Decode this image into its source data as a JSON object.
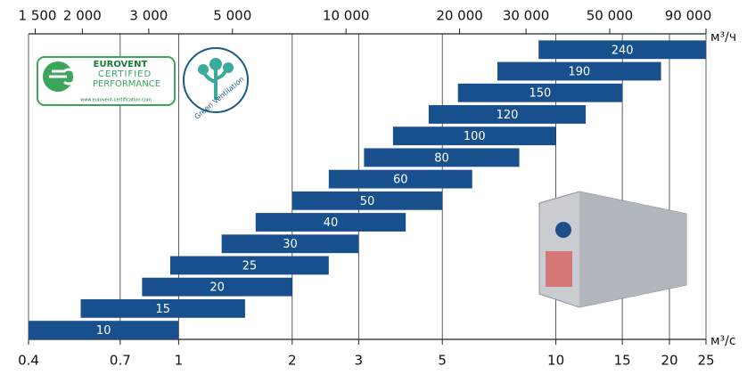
{
  "chart_data": {
    "type": "range-bar",
    "xscale": "log",
    "color": "#17508c",
    "categories": [
      "240",
      "190",
      "150",
      "120",
      "100",
      "80",
      "60",
      "50",
      "40",
      "30",
      "25",
      "20",
      "15",
      "10"
    ],
    "low": [
      9,
      7,
      5.5,
      4.6,
      3.7,
      3.1,
      2.5,
      2,
      1.6,
      1.3,
      0.95,
      0.8,
      0.55,
      0.4
    ],
    "high": [
      25,
      19,
      15,
      12,
      10,
      8,
      6,
      5,
      4,
      3,
      2.5,
      2,
      1.5,
      1
    ],
    "xlim": [
      0.4,
      25
    ],
    "xticks": [
      0.4,
      0.7,
      1,
      2,
      3,
      5,
      10,
      15,
      20,
      25
    ],
    "x2lim": [
      1440,
      90000
    ],
    "x2ticks": [
      {
        "value": 1500,
        "label": "1 500"
      },
      {
        "value": 2000,
        "label": "2 000"
      },
      {
        "value": 3000,
        "label": "3 000"
      },
      {
        "value": 5000,
        "label": "5 000"
      },
      {
        "value": 10000,
        "label": "10 000"
      },
      {
        "value": 20000,
        "label": "20 000"
      },
      {
        "value": 30000,
        "label": "30 000"
      },
      {
        "value": 50000,
        "label": "50 000"
      },
      {
        "value": 90000,
        "label": "90 000"
      }
    ],
    "xlabel": "м³/с",
    "x2label": "м³/ч",
    "grid": true
  },
  "logos": {
    "eurovent": [
      "EUROVENT",
      "CERTIFIED",
      "PERFORMANCE",
      "www.eurovent-certification.com"
    ],
    "green": "Green Ventilation"
  }
}
